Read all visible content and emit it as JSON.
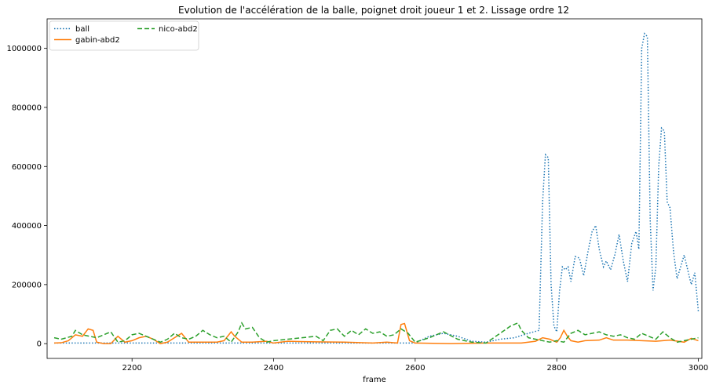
{
  "chart_data": {
    "type": "line",
    "title": "Evolution de l'accélération de la balle, poignet droit joueur 1 et 2. Lissage ordre 12",
    "xlabel": "frame",
    "ylabel": "",
    "xlim": [
      2080,
      3005
    ],
    "ylim": [
      -50000,
      1100000
    ],
    "x_ticks": [
      2200,
      2400,
      2600,
      2800,
      3000
    ],
    "y_ticks": [
      0,
      200000,
      400000,
      600000,
      800000,
      1000000
    ],
    "x_tick_labels": [
      "2200",
      "2400",
      "2600",
      "2800",
      "3000"
    ],
    "y_tick_labels": [
      "0",
      "200000",
      "400000",
      "600000",
      "800000",
      "1000000"
    ],
    "grid": false,
    "legend_position": "top-left",
    "series": [
      {
        "name": "ball",
        "color": "#1f77b4",
        "style": "dotted",
        "x": [
          2090,
          2120,
          2160,
          2200,
          2250,
          2300,
          2350,
          2400,
          2450,
          2500,
          2550,
          2600,
          2620,
          2640,
          2660,
          2680,
          2700,
          2720,
          2740,
          2760,
          2775,
          2780,
          2784,
          2788,
          2792,
          2796,
          2800,
          2804,
          2808,
          2812,
          2816,
          2820,
          2826,
          2832,
          2838,
          2844,
          2850,
          2855,
          2860,
          2866,
          2870,
          2876,
          2882,
          2888,
          2894,
          2900,
          2906,
          2912,
          2916,
          2920,
          2924,
          2928,
          2932,
          2936,
          2940,
          2944,
          2948,
          2952,
          2956,
          2960,
          2965,
          2970,
          2975,
          2980,
          2985,
          2990,
          2995,
          3000
        ],
        "values": [
          2000,
          2000,
          2000,
          2000,
          2000,
          2000,
          2000,
          2000,
          2000,
          2000,
          2000,
          2000,
          25000,
          35000,
          25000,
          8000,
          5000,
          15000,
          20000,
          35000,
          45000,
          480000,
          640000,
          630000,
          200000,
          60000,
          40000,
          180000,
          260000,
          250000,
          260000,
          210000,
          295000,
          290000,
          230000,
          310000,
          380000,
          400000,
          320000,
          260000,
          280000,
          250000,
          300000,
          370000,
          280000,
          210000,
          340000,
          380000,
          320000,
          1000000,
          1050000,
          1040000,
          420000,
          180000,
          260000,
          600000,
          730000,
          720000,
          480000,
          460000,
          310000,
          220000,
          260000,
          300000,
          250000,
          200000,
          240000,
          110000
        ]
      },
      {
        "name": "gabin-abd2",
        "color": "#ff7f0e",
        "style": "solid",
        "x": [
          2090,
          2100,
          2110,
          2120,
          2130,
          2138,
          2145,
          2150,
          2160,
          2170,
          2180,
          2190,
          2200,
          2210,
          2220,
          2230,
          2240,
          2250,
          2260,
          2270,
          2280,
          2300,
          2320,
          2330,
          2340,
          2345,
          2355,
          2370,
          2390,
          2400,
          2420,
          2460,
          2500,
          2540,
          2560,
          2575,
          2580,
          2585,
          2592,
          2600,
          2650,
          2700,
          2750,
          2770,
          2780,
          2790,
          2800,
          2805,
          2810,
          2815,
          2820,
          2830,
          2840,
          2860,
          2870,
          2880,
          2900,
          2920,
          2940,
          2960,
          2980,
          2990,
          3000
        ],
        "values": [
          2000,
          3000,
          10000,
          30000,
          25000,
          50000,
          45000,
          5000,
          0,
          0,
          25000,
          5000,
          10000,
          20000,
          25000,
          15000,
          0,
          5000,
          20000,
          35000,
          5000,
          5000,
          5000,
          10000,
          40000,
          25000,
          5000,
          5000,
          8000,
          2000,
          8000,
          6000,
          5000,
          2000,
          5000,
          2000,
          65000,
          68000,
          10000,
          2000,
          0,
          2000,
          2000,
          8000,
          20000,
          15000,
          5000,
          20000,
          45000,
          25000,
          10000,
          5000,
          10000,
          12000,
          20000,
          12000,
          12000,
          10000,
          8000,
          12000,
          5000,
          18000,
          10000
        ]
      },
      {
        "name": "nico-abd2",
        "color": "#2ca02c",
        "style": "dashed",
        "x": [
          2090,
          2100,
          2115,
          2120,
          2130,
          2140,
          2150,
          2160,
          2170,
          2180,
          2190,
          2200,
          2210,
          2220,
          2240,
          2250,
          2260,
          2270,
          2280,
          2290,
          2300,
          2310,
          2320,
          2330,
          2340,
          2350,
          2355,
          2360,
          2370,
          2380,
          2390,
          2400,
          2420,
          2440,
          2460,
          2470,
          2480,
          2490,
          2500,
          2510,
          2520,
          2530,
          2540,
          2550,
          2560,
          2570,
          2580,
          2590,
          2600,
          2620,
          2640,
          2660,
          2680,
          2700,
          2720,
          2735,
          2745,
          2750,
          2760,
          2770,
          2780,
          2790,
          2800,
          2810,
          2820,
          2830,
          2840,
          2850,
          2860,
          2870,
          2880,
          2890,
          2900,
          2910,
          2920,
          2930,
          2940,
          2950,
          2960,
          2970,
          2980,
          2990,
          3000
        ],
        "values": [
          20000,
          15000,
          25000,
          45000,
          30000,
          25000,
          20000,
          30000,
          40000,
          5000,
          10000,
          30000,
          35000,
          25000,
          5000,
          15000,
          35000,
          20000,
          15000,
          25000,
          45000,
          30000,
          20000,
          25000,
          5000,
          40000,
          70000,
          50000,
          55000,
          20000,
          5000,
          10000,
          15000,
          20000,
          25000,
          10000,
          45000,
          50000,
          25000,
          45000,
          30000,
          50000,
          35000,
          40000,
          25000,
          30000,
          50000,
          35000,
          5000,
          20000,
          40000,
          15000,
          5000,
          2000,
          35000,
          60000,
          70000,
          45000,
          20000,
          15000,
          10000,
          5000,
          10000,
          5000,
          35000,
          45000,
          30000,
          35000,
          40000,
          30000,
          25000,
          30000,
          20000,
          15000,
          35000,
          25000,
          15000,
          40000,
          20000,
          5000,
          10000,
          15000,
          20000
        ]
      }
    ]
  }
}
